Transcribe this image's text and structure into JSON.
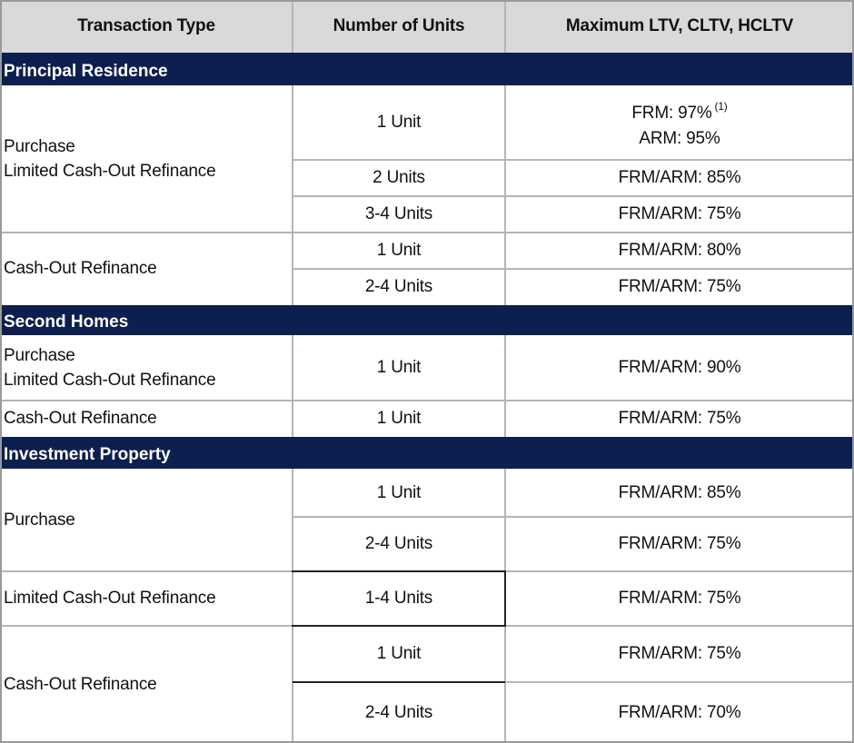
{
  "headers": {
    "transaction_type": "Transaction Type",
    "number_of_units": "Number of Units",
    "max_ltv": "Maximum LTV, CLTV, HCLTV"
  },
  "sections": {
    "principal": {
      "title": "Principal Residence",
      "purchase_group": {
        "line1": "Purchase",
        "line2": "Limited Cash-Out Refinance"
      },
      "cashout_group": "Cash-Out Refinance",
      "rows": [
        {
          "units": "1 Unit",
          "ltv_line1": "FRM: 97%",
          "footnote": "(1)",
          "ltv_line2": "ARM: 95%"
        },
        {
          "units": "2 Units",
          "ltv": "FRM/ARM: 85%"
        },
        {
          "units": "3-4 Units",
          "ltv": "FRM/ARM: 75%"
        },
        {
          "units": "1 Unit",
          "ltv": "FRM/ARM: 80%"
        },
        {
          "units": "2-4 Units",
          "ltv": "FRM/ARM: 75%"
        }
      ]
    },
    "second": {
      "title": "Second Homes",
      "rows": [
        {
          "type_line1": "Purchase",
          "type_line2": "Limited Cash-Out Refinance",
          "units": "1 Unit",
          "ltv": "FRM/ARM: 90%"
        },
        {
          "type": "Cash-Out Refinance",
          "units": "1 Unit",
          "ltv": "FRM/ARM: 75%"
        }
      ]
    },
    "investment": {
      "title": "Investment Property",
      "purchase_group": "Purchase",
      "limited_group": "Limited Cash-Out Refinance",
      "cashout_group": "Cash-Out Refinance",
      "rows": [
        {
          "units": "1 Unit",
          "ltv": "FRM/ARM: 85%"
        },
        {
          "units": "2-4 Units",
          "ltv": "FRM/ARM: 75%"
        },
        {
          "units": "1-4 Units",
          "ltv": "FRM/ARM: 75%"
        },
        {
          "units": "1 Unit",
          "ltv": "FRM/ARM: 75%"
        },
        {
          "units": "2-4 Units",
          "ltv": "FRM/ARM: 70%"
        }
      ]
    }
  }
}
